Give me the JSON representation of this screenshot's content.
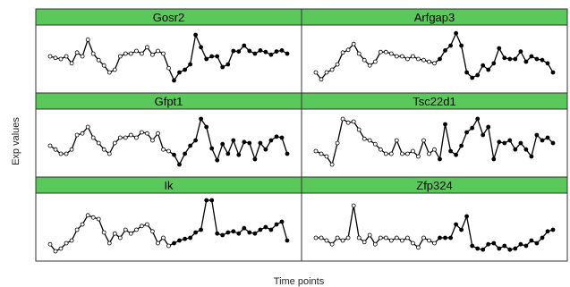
{
  "chart_data": {
    "type": "line",
    "xlabel": "Time points",
    "ylabel": "Exp values",
    "layout": "3 rows x 2 columns",
    "strip_color": "#5ac85a",
    "line_color": "#000000",
    "open_marker_fill": "#ffffff",
    "filled_marker_fill": "#000000",
    "x": [
      1,
      2,
      3,
      4,
      5,
      6,
      7,
      8,
      9,
      10,
      11,
      12,
      13,
      14,
      15,
      16,
      17,
      18,
      19,
      20,
      21,
      22,
      23,
      24,
      25,
      26,
      27,
      28,
      29,
      30,
      31,
      32,
      33,
      34,
      35,
      36,
      37,
      38,
      39,
      40,
      41,
      42,
      43,
      44,
      45
    ],
    "filled_from_index": 23,
    "ylim": [
      0,
      1
    ],
    "panels": [
      {
        "name": "Gosr2",
        "values": [
          0.55,
          0.52,
          0.5,
          0.55,
          0.42,
          0.62,
          0.55,
          0.86,
          0.6,
          0.48,
          0.38,
          0.25,
          0.3,
          0.55,
          0.6,
          0.6,
          0.65,
          0.6,
          0.72,
          0.58,
          0.65,
          0.6,
          0.33,
          0.1,
          0.25,
          0.3,
          0.4,
          0.95,
          0.72,
          0.5,
          0.55,
          0.55,
          0.35,
          0.4,
          0.65,
          0.64,
          0.75,
          0.65,
          0.6,
          0.66,
          0.63,
          0.58,
          0.64,
          0.66,
          0.6
        ]
      },
      {
        "name": "Arfgap3",
        "values": [
          0.25,
          0.12,
          0.25,
          0.3,
          0.4,
          0.62,
          0.67,
          0.78,
          0.6,
          0.48,
          0.38,
          0.45,
          0.63,
          0.63,
          0.6,
          0.55,
          0.55,
          0.5,
          0.55,
          0.5,
          0.48,
          0.45,
          0.42,
          0.5,
          0.66,
          0.75,
          0.98,
          0.75,
          0.25,
          0.15,
          0.2,
          0.38,
          0.3,
          0.42,
          0.7,
          0.52,
          0.5,
          0.5,
          0.64,
          0.45,
          0.55,
          0.5,
          0.48,
          0.42,
          0.25
        ]
      },
      {
        "name": "Gfpt1",
        "values": [
          0.45,
          0.38,
          0.3,
          0.3,
          0.38,
          0.65,
          0.68,
          0.8,
          0.6,
          0.5,
          0.38,
          0.3,
          0.5,
          0.6,
          0.6,
          0.65,
          0.6,
          0.7,
          0.68,
          0.55,
          0.68,
          0.38,
          0.35,
          0.28,
          0.1,
          0.3,
          0.45,
          0.55,
          0.95,
          0.8,
          0.4,
          0.18,
          0.48,
          0.3,
          0.55,
          0.28,
          0.52,
          0.5,
          0.2,
          0.5,
          0.38,
          0.55,
          0.62,
          0.6,
          0.3
        ]
      },
      {
        "name": "Tsc22d1",
        "values": [
          0.35,
          0.3,
          0.25,
          0.1,
          0.5,
          0.95,
          0.88,
          0.9,
          0.75,
          0.58,
          0.55,
          0.48,
          0.38,
          0.3,
          0.3,
          0.55,
          0.3,
          0.3,
          0.35,
          0.25,
          0.55,
          0.3,
          0.38,
          0.2,
          0.85,
          0.35,
          0.28,
          0.45,
          0.7,
          0.78,
          0.95,
          0.65,
          0.8,
          0.2,
          0.52,
          0.5,
          0.55,
          0.38,
          0.5,
          0.38,
          0.25,
          0.65,
          0.55,
          0.6,
          0.5
        ]
      },
      {
        "name": "Ik",
        "values": [
          0.18,
          0.05,
          0.1,
          0.2,
          0.25,
          0.45,
          0.55,
          0.72,
          0.68,
          0.65,
          0.4,
          0.2,
          0.38,
          0.3,
          0.45,
          0.38,
          0.45,
          0.52,
          0.55,
          0.42,
          0.2,
          0.3,
          0.15,
          0.2,
          0.25,
          0.28,
          0.3,
          0.4,
          0.45,
          1.0,
          1.0,
          0.38,
          0.35,
          0.4,
          0.42,
          0.38,
          0.48,
          0.4,
          0.38,
          0.45,
          0.5,
          0.45,
          0.55,
          0.6,
          0.25
        ]
      },
      {
        "name": "Zfp324",
        "values": [
          0.3,
          0.3,
          0.25,
          0.18,
          0.3,
          0.25,
          0.3,
          0.9,
          0.3,
          0.22,
          0.35,
          0.18,
          0.3,
          0.3,
          0.25,
          0.3,
          0.25,
          0.3,
          0.2,
          0.12,
          0.3,
          0.25,
          0.2,
          0.3,
          0.3,
          0.3,
          0.55,
          0.45,
          0.7,
          0.15,
          0.1,
          0.08,
          0.18,
          0.2,
          0.1,
          0.15,
          0.08,
          0.1,
          0.18,
          0.15,
          0.25,
          0.2,
          0.3,
          0.42,
          0.45
        ]
      }
    ]
  }
}
